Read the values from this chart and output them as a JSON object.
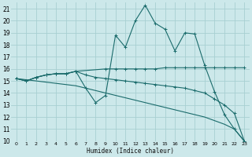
{
  "xlabel": "Humidex (Indice chaleur)",
  "background_color": "#cce8ea",
  "grid_color": "#a8cfd2",
  "line_color": "#1a6b6b",
  "xlim": [
    -0.5,
    23.5
  ],
  "ylim": [
    10,
    21.5
  ],
  "xticks": [
    0,
    1,
    2,
    3,
    4,
    5,
    6,
    7,
    8,
    9,
    10,
    11,
    12,
    13,
    14,
    15,
    16,
    17,
    18,
    19,
    20,
    21,
    22,
    23
  ],
  "yticks": [
    10,
    11,
    12,
    13,
    14,
    15,
    16,
    17,
    18,
    19,
    20,
    21
  ],
  "series1_x": [
    0,
    1,
    2,
    3,
    4,
    5,
    6,
    7,
    8,
    9,
    10,
    11,
    12,
    13,
    14,
    15,
    16,
    17,
    18,
    19,
    20,
    21,
    22,
    23
  ],
  "series1_y": [
    15.2,
    15.0,
    15.3,
    15.5,
    15.6,
    15.6,
    15.8,
    14.4,
    13.2,
    13.8,
    18.8,
    17.8,
    20.0,
    21.3,
    19.8,
    19.3,
    17.5,
    19.0,
    18.9,
    16.3,
    14.1,
    12.2,
    11.0,
    10.0
  ],
  "series2_x": [
    0,
    1,
    2,
    3,
    4,
    5,
    6,
    9,
    10,
    11,
    12,
    13,
    14,
    15,
    16,
    17,
    18,
    19,
    20,
    21,
    22,
    23
  ],
  "series2_y": [
    15.2,
    15.0,
    15.3,
    15.5,
    15.6,
    15.6,
    15.8,
    16.0,
    16.0,
    16.0,
    16.0,
    16.0,
    16.0,
    16.1,
    16.1,
    16.1,
    16.1,
    16.1,
    16.1,
    16.1,
    16.1,
    16.1
  ],
  "series3_x": [
    0,
    1,
    2,
    3,
    4,
    5,
    6,
    7,
    8,
    9,
    10,
    11,
    12,
    13,
    14,
    15,
    16,
    17,
    18,
    19,
    20,
    21,
    22,
    23
  ],
  "series3_y": [
    15.2,
    15.0,
    15.3,
    15.5,
    15.6,
    15.6,
    15.8,
    15.5,
    15.3,
    15.2,
    15.1,
    15.0,
    14.9,
    14.8,
    14.7,
    14.6,
    14.5,
    14.4,
    14.2,
    14.0,
    13.5,
    13.0,
    12.3,
    10.0
  ],
  "series4_x": [
    0,
    1,
    2,
    3,
    4,
    5,
    6,
    7,
    8,
    9,
    10,
    11,
    12,
    13,
    14,
    15,
    16,
    17,
    18,
    19,
    20,
    21,
    22,
    23
  ],
  "series4_y": [
    15.2,
    15.1,
    15.0,
    14.9,
    14.8,
    14.7,
    14.6,
    14.4,
    14.2,
    14.0,
    13.8,
    13.6,
    13.4,
    13.2,
    13.0,
    12.8,
    12.6,
    12.4,
    12.2,
    12.0,
    11.7,
    11.4,
    11.0,
    10.0
  ]
}
